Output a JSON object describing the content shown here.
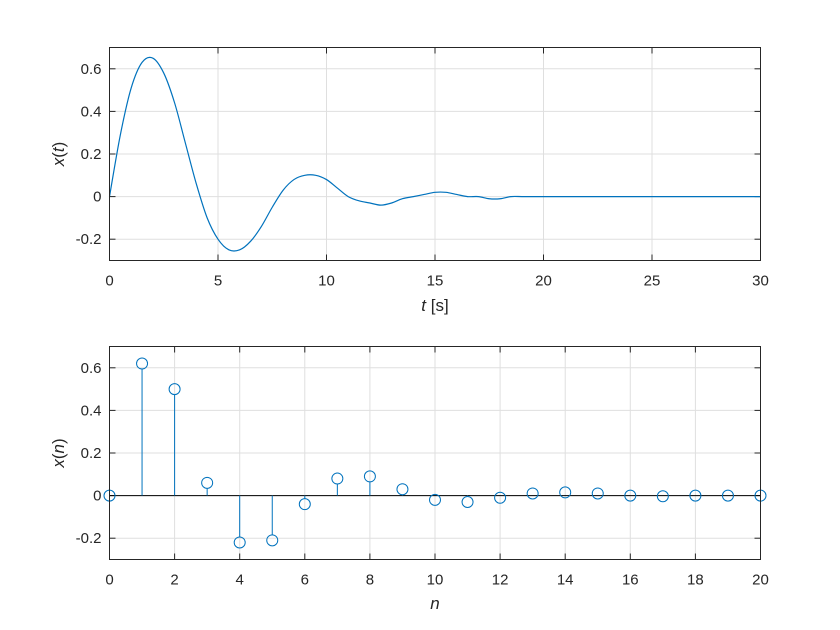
{
  "chart_data": [
    {
      "type": "line",
      "ylabel": {
        "var": "x",
        "arg": "t"
      },
      "xlabel": {
        "var": "t",
        "unit": " [s]"
      },
      "xlim": [
        0,
        30
      ],
      "ylim": [
        -0.3,
        0.7
      ],
      "xticks": [
        0,
        5,
        10,
        15,
        20,
        25,
        30
      ],
      "xtick_labels": [
        "0",
        "5",
        "10",
        "15",
        "20",
        "25",
        "30"
      ],
      "yticks": [
        -0.2,
        0,
        0.2,
        0.4,
        0.6
      ],
      "ytick_labels": [
        "-0.2",
        "0",
        "0.2",
        "0.4",
        "0.6"
      ],
      "grid": true,
      "series": [
        {
          "color": "#0072bd",
          "x": [
            0,
            0.5,
            1,
            1.5,
            2,
            2.5,
            3,
            3.5,
            4,
            4.5,
            5,
            5.5,
            6,
            6.5,
            7,
            7.5,
            8,
            8.5,
            9,
            9.5,
            10,
            10.5,
            11,
            11.5,
            12,
            12.5,
            13,
            13.5,
            14,
            14.5,
            15,
            15.5,
            16,
            16.5,
            17,
            17.5,
            18,
            18.5,
            19,
            19.5,
            20,
            20.5,
            21,
            21.5,
            22,
            22.5,
            23,
            23.5,
            24,
            24.5,
            25,
            25.5,
            26,
            26.5,
            27,
            27.5,
            28,
            28.5,
            29,
            29.5,
            30
          ],
          "y": [
            0,
            0.29,
            0.51,
            0.63,
            0.65,
            0.58,
            0.44,
            0.25,
            0.06,
            -0.1,
            -0.2,
            -0.25,
            -0.25,
            -0.21,
            -0.14,
            -0.05,
            0.03,
            0.08,
            0.1,
            0.1,
            0.08,
            0.04,
            0.0,
            -0.02,
            -0.03,
            -0.04,
            -0.03,
            -0.01,
            0.0,
            0.01,
            0.02,
            0.02,
            0.01,
            0.0,
            0.0,
            -0.01,
            -0.01,
            0.0,
            0.0,
            0.0,
            0.0,
            0.0,
            0.0,
            0.0,
            0.0,
            0.0,
            0.0,
            0.0,
            0.0,
            0.0,
            0.0,
            0.0,
            0.0,
            0.0,
            0.0,
            0.0,
            0.0,
            0.0,
            0.0,
            0.0,
            0.0
          ]
        }
      ]
    },
    {
      "type": "stem",
      "ylabel": {
        "var": "x",
        "arg": "n"
      },
      "xlabel": {
        "var": "n",
        "unit": ""
      },
      "xlim": [
        0,
        20
      ],
      "ylim": [
        -0.3,
        0.7
      ],
      "xticks": [
        0,
        2,
        4,
        6,
        8,
        10,
        12,
        14,
        16,
        18,
        20
      ],
      "xtick_labels": [
        "0",
        "2",
        "4",
        "6",
        "8",
        "10",
        "12",
        "14",
        "16",
        "18",
        "20"
      ],
      "yticks": [
        -0.2,
        0,
        0.2,
        0.4,
        0.6
      ],
      "ytick_labels": [
        "-0.2",
        "0",
        "0.2",
        "0.4",
        "0.6"
      ],
      "grid": true,
      "series": [
        {
          "color": "#0072bd",
          "x": [
            0,
            1,
            2,
            3,
            4,
            5,
            6,
            7,
            8,
            9,
            10,
            11,
            12,
            13,
            14,
            15,
            16,
            17,
            18,
            19,
            20
          ],
          "y": [
            0,
            0.62,
            0.5,
            0.06,
            -0.22,
            -0.21,
            -0.04,
            0.08,
            0.09,
            0.03,
            -0.02,
            -0.03,
            -0.01,
            0.01,
            0.015,
            0.01,
            0.0,
            -0.003,
            0.0,
            0.0,
            0.0
          ]
        }
      ]
    }
  ]
}
